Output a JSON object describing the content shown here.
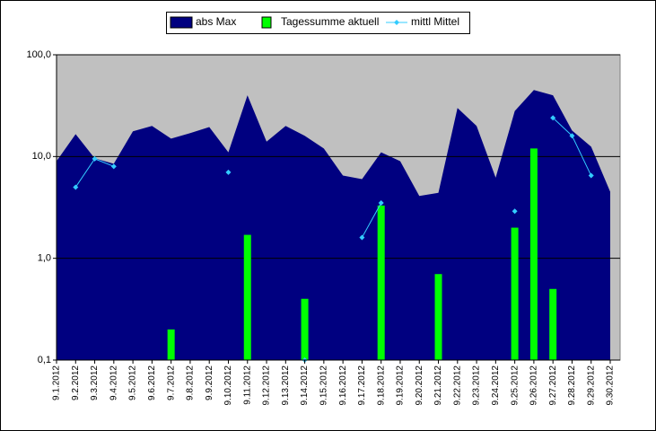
{
  "chart_data": {
    "type": "combo",
    "categories": [
      "9.1.2012",
      "9.2.2012",
      "9.3.2012",
      "9.4.2012",
      "9.5.2012",
      "9.6.2012",
      "9.7.2012",
      "9.8.2012",
      "9.9.2012",
      "9.10.2012",
      "9.11.2012",
      "9.12.2012",
      "9.13.2012",
      "9.14.2012",
      "9.15.2012",
      "9.16.2012",
      "9.17.2012",
      "9.18.2012",
      "9.19.2012",
      "9.20.2012",
      "9.21.2012",
      "9.22.2012",
      "9.23.2012",
      "9.24.2012",
      "9.25.2012",
      "9.26.2012",
      "9.27.2012",
      "9.28.2012",
      "9.29.2012",
      "9.30.2012"
    ],
    "series": [
      {
        "name": "abs Max",
        "kind": "area",
        "color": "#000080",
        "values": [
          9.0,
          16.6,
          9.6,
          8.5,
          17.7,
          20,
          15,
          17,
          19.5,
          11,
          40,
          14,
          20,
          16,
          12,
          6.5,
          6,
          11,
          9,
          4.1,
          4.4,
          30,
          20,
          6.2,
          28,
          45,
          40,
          18,
          12.5,
          4.5
        ]
      },
      {
        "name": "Tagessumme aktuell",
        "kind": "bar",
        "color": "#00ff00",
        "values": [
          null,
          null,
          null,
          null,
          null,
          null,
          0.2,
          null,
          null,
          null,
          1.7,
          null,
          null,
          0.4,
          null,
          null,
          null,
          3.3,
          null,
          null,
          0.7,
          null,
          null,
          null,
          2.0,
          12,
          0.5,
          null,
          null,
          null
        ]
      },
      {
        "name": "mittl Mittel",
        "kind": "line",
        "color": "#33ccff",
        "values": [
          null,
          5,
          9.5,
          8,
          null,
          null,
          null,
          null,
          null,
          7,
          null,
          null,
          null,
          0.1,
          null,
          null,
          1.6,
          3.5,
          null,
          null,
          null,
          null,
          null,
          null,
          2.9,
          null,
          24,
          16,
          6.5,
          null
        ]
      }
    ],
    "ylim": [
      0.1,
      100
    ],
    "log": true,
    "yticks": [
      {
        "value": 0.1,
        "label": "0,1"
      },
      {
        "value": 1,
        "label": "1,0"
      },
      {
        "value": 10,
        "label": "10,0"
      },
      {
        "value": 100,
        "label": "100,0"
      }
    ],
    "grid": true,
    "legend": "top"
  }
}
